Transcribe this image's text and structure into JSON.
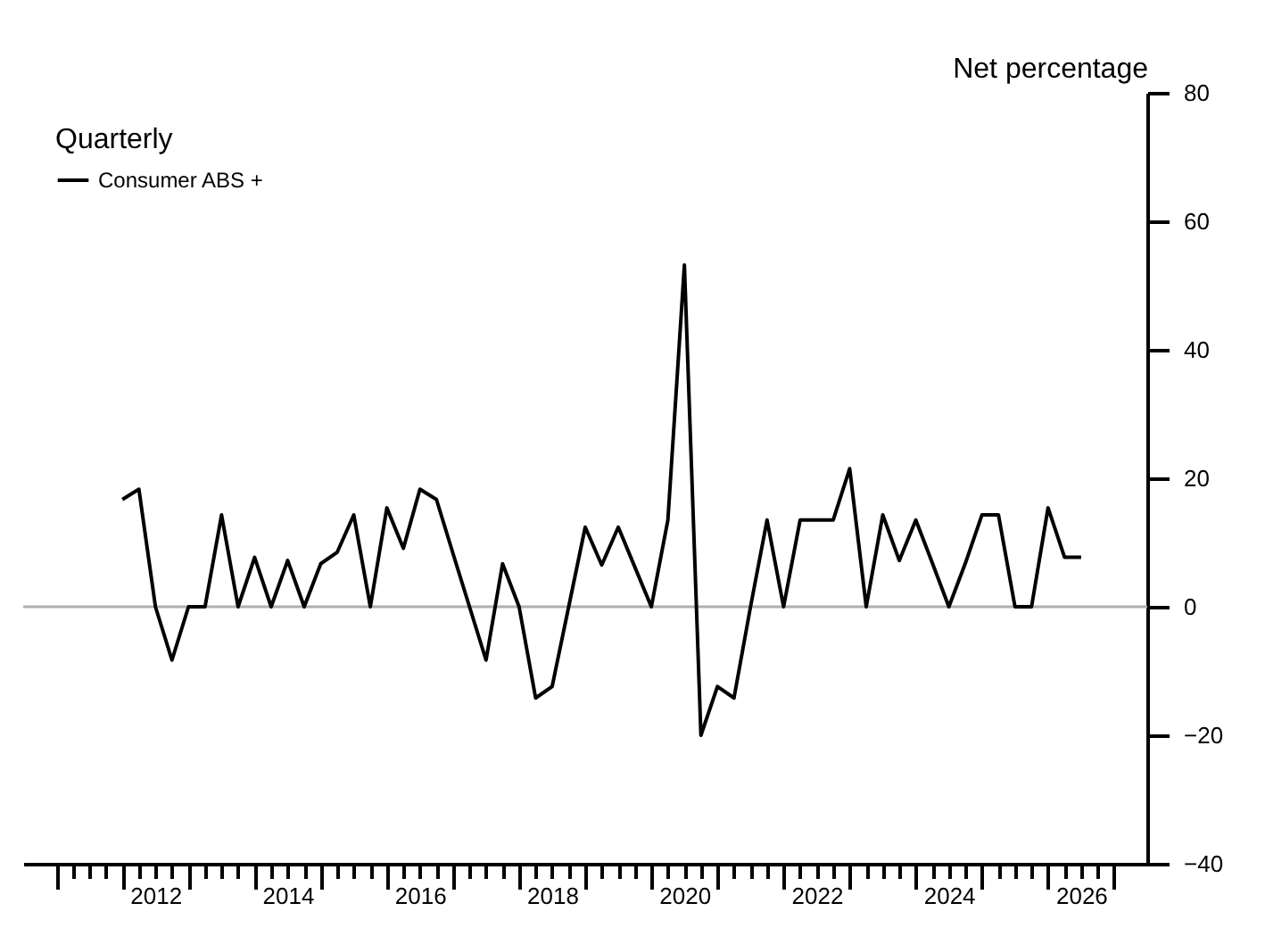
{
  "chart_data": {
    "type": "line",
    "legend_title": "Quarterly",
    "y2label": "Net percentage",
    "x": [
      2012.0,
      2012.25,
      2012.5,
      2012.75,
      2013.0,
      2013.25,
      2013.5,
      2013.75,
      2014.0,
      2014.25,
      2014.5,
      2014.75,
      2015.0,
      2015.25,
      2015.5,
      2015.75,
      2016.0,
      2016.25,
      2016.5,
      2016.75,
      2017.0,
      2017.25,
      2017.5,
      2017.75,
      2018.0,
      2018.25,
      2018.5,
      2018.75,
      2019.0,
      2019.25,
      2019.5,
      2019.75,
      2020.0,
      2020.25,
      2020.5,
      2020.75,
      2021.0,
      2021.25,
      2021.5,
      2021.75,
      2022.0,
      2022.25,
      2022.5,
      2022.75,
      2023.0,
      2023.25,
      2023.5,
      2023.75,
      2024.0,
      2024.25,
      2024.5,
      2024.75,
      2025.0,
      2025.25,
      2025.5,
      2025.75,
      2026.0,
      2026.25,
      2026.5
    ],
    "series": [
      {
        "name": "Consumer ABS +",
        "color": "#000000",
        "axis": "y2",
        "values": [
          16.7,
          18.3,
          0,
          -8.3,
          0,
          0,
          14.3,
          0,
          7.7,
          0,
          7.2,
          0,
          6.7,
          8.5,
          14.3,
          0,
          15.4,
          9.1,
          18.3,
          16.7,
          8.3,
          0,
          -8.3,
          6.7,
          0,
          -14.2,
          -12.4,
          0,
          12.4,
          6.5,
          12.4,
          6.2,
          0,
          13.5,
          53.2,
          -20,
          -12.4,
          -14.2,
          0,
          13.5,
          0,
          13.5,
          13.5,
          13.5,
          21.5,
          0,
          14.3,
          7.2,
          13.5,
          6.8,
          0,
          6.8,
          14.3,
          14.3,
          0,
          0,
          15.4,
          7.7,
          7.7
        ]
      }
    ],
    "xlim": [
      2010.5,
      2027.5
    ],
    "xticks": [
      {
        "value": 2011,
        "label": null
      },
      {
        "value": 2011.25,
        "label": null
      },
      {
        "value": 2011.5,
        "label": null
      },
      {
        "value": 2011.75,
        "label": null
      },
      {
        "value": 2012,
        "label": null
      },
      {
        "value": 2012.25,
        "label": null
      },
      {
        "value": 2012.5,
        "label": "2012"
      },
      {
        "value": 2012.75,
        "label": null
      },
      {
        "value": 2013,
        "label": null
      },
      {
        "value": 2013.25,
        "label": null
      },
      {
        "value": 2013.5,
        "label": null
      },
      {
        "value": 2013.75,
        "label": null
      },
      {
        "value": 2014,
        "label": null
      },
      {
        "value": 2014.25,
        "label": null
      },
      {
        "value": 2014.5,
        "label": "2014"
      },
      {
        "value": 2014.75,
        "label": null
      },
      {
        "value": 2015,
        "label": null
      },
      {
        "value": 2015.25,
        "label": null
      },
      {
        "value": 2015.5,
        "label": null
      },
      {
        "value": 2015.75,
        "label": null
      },
      {
        "value": 2016,
        "label": null
      },
      {
        "value": 2016.25,
        "label": null
      },
      {
        "value": 2016.5,
        "label": "2016"
      },
      {
        "value": 2016.75,
        "label": null
      },
      {
        "value": 2017,
        "label": null
      },
      {
        "value": 2017.25,
        "label": null
      },
      {
        "value": 2017.5,
        "label": null
      },
      {
        "value": 2017.75,
        "label": null
      },
      {
        "value": 2018,
        "label": null
      },
      {
        "value": 2018.25,
        "label": null
      },
      {
        "value": 2018.5,
        "label": "2018"
      },
      {
        "value": 2018.75,
        "label": null
      },
      {
        "value": 2019,
        "label": null
      },
      {
        "value": 2019.25,
        "label": null
      },
      {
        "value": 2019.5,
        "label": null
      },
      {
        "value": 2019.75,
        "label": null
      },
      {
        "value": 2020,
        "label": null
      },
      {
        "value": 2020.25,
        "label": null
      },
      {
        "value": 2020.5,
        "label": "2020"
      },
      {
        "value": 2020.75,
        "label": null
      },
      {
        "value": 2021,
        "label": null
      },
      {
        "value": 2021.25,
        "label": null
      },
      {
        "value": 2021.5,
        "label": null
      },
      {
        "value": 2021.75,
        "label": null
      },
      {
        "value": 2022,
        "label": null
      },
      {
        "value": 2022.25,
        "label": null
      },
      {
        "value": 2022.5,
        "label": "2022"
      },
      {
        "value": 2022.75,
        "label": null
      },
      {
        "value": 2023,
        "label": null
      },
      {
        "value": 2023.25,
        "label": null
      },
      {
        "value": 2023.5,
        "label": null
      },
      {
        "value": 2023.75,
        "label": null
      },
      {
        "value": 2024,
        "label": null
      },
      {
        "value": 2024.25,
        "label": null
      },
      {
        "value": 2024.5,
        "label": "2024"
      },
      {
        "value": 2024.75,
        "label": null
      },
      {
        "value": 2025,
        "label": null
      },
      {
        "value": 2025.25,
        "label": null
      },
      {
        "value": 2025.5,
        "label": null
      },
      {
        "value": 2025.75,
        "label": null
      },
      {
        "value": 2026,
        "label": null
      },
      {
        "value": 2026.25,
        "label": null
      },
      {
        "value": 2026.5,
        "label": "2026"
      },
      {
        "value": 2026.75,
        "label": null
      },
      {
        "value": 2027,
        "label": null
      }
    ],
    "y2lim": [
      -40,
      80
    ],
    "y2ticks": [
      -40,
      -20,
      0,
      20,
      40,
      60,
      80
    ],
    "ref_lines": [
      {
        "axis": "y2",
        "value": 0,
        "color": "#b0b0b0"
      }
    ],
    "grid": false,
    "legend": "top left",
    "line_style": "solid",
    "marker": "none"
  }
}
